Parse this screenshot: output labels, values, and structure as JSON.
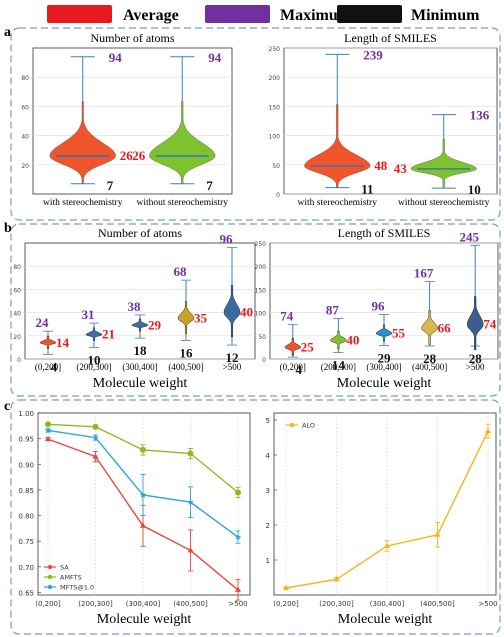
{
  "legend": {
    "items": [
      {
        "label": "Average",
        "color": "#e8191f"
      },
      {
        "label": "Maximum",
        "color": "#7030a0"
      },
      {
        "label": "Minimum",
        "color": "#000000"
      }
    ]
  },
  "panel_labels": [
    "a",
    "b",
    "c"
  ],
  "chart_data": [
    {
      "id": "a_atoms",
      "type": "violin",
      "title": "Number of atoms",
      "categories": [
        "with stereochemistry",
        "without stereochemistry"
      ],
      "ylim": [
        0,
        100
      ],
      "yticks": [
        20,
        40,
        60,
        80
      ],
      "colors": [
        "#f0542b",
        "#7ec230"
      ],
      "average": [
        26,
        26
      ],
      "maximum": [
        94,
        94
      ],
      "minimum": [
        7,
        7
      ],
      "average_labels": [
        "26",
        "26"
      ],
      "maximum_labels": [
        "94",
        "94"
      ],
      "minimum_labels": [
        "7",
        "7"
      ]
    },
    {
      "id": "a_smiles",
      "type": "violin",
      "title": "Length of SMILES",
      "categories": [
        "with stereochemistry",
        "without stereochemistry"
      ],
      "ylim": [
        0,
        250
      ],
      "yticks": [
        0,
        50,
        100,
        150,
        200,
        250
      ],
      "colors": [
        "#f0542b",
        "#7ec230"
      ],
      "average": [
        48,
        43
      ],
      "maximum": [
        239,
        136
      ],
      "minimum": [
        11,
        10
      ],
      "average_labels": [
        "48",
        "43"
      ],
      "maximum_labels": [
        "239",
        "136"
      ],
      "minimum_labels": [
        "11",
        "10"
      ]
    },
    {
      "id": "b_atoms",
      "type": "violin",
      "title": "Number of atoms",
      "xlabel": "Molecule weight",
      "categories": [
        "(0,200]",
        "(200,300]",
        "(300,400]",
        "(400,500]",
        ">500"
      ],
      "ylim": [
        0,
        100
      ],
      "yticks": [
        0,
        20,
        40,
        60,
        80
      ],
      "colors": [
        "#f0542b",
        "#3c6ea8",
        "#3e6f9e",
        "#c9a227",
        "#3a6aa4"
      ],
      "average": [
        14,
        21,
        29,
        35,
        40
      ],
      "maximum": [
        24,
        31,
        38,
        68,
        96
      ],
      "minimum": [
        4,
        10,
        18,
        16,
        12
      ],
      "average_labels": [
        "14",
        "21",
        "29",
        "35",
        "40"
      ],
      "maximum_labels": [
        "24",
        "31",
        "38",
        "68",
        "96"
      ],
      "minimum_labels": [
        "4",
        "10",
        "18",
        "16",
        "12"
      ]
    },
    {
      "id": "b_smiles",
      "type": "violin",
      "title": "Length of SMILES",
      "xlabel": "Molecule weight",
      "categories": [
        "(0,200]",
        "(200,300]",
        "(300,400]",
        "(400,500]",
        ">500"
      ],
      "ylim": [
        0,
        250
      ],
      "yticks": [
        0,
        50,
        100,
        150,
        200,
        250
      ],
      "colors": [
        "#f0542b",
        "#7ec230",
        "#2a8fcb",
        "#d8b64a",
        "#3a5f8f"
      ],
      "average": [
        25,
        40,
        55,
        66,
        74
      ],
      "maximum": [
        74,
        87,
        96,
        167,
        245
      ],
      "minimum": [
        4,
        14,
        29,
        28,
        28
      ],
      "average_labels": [
        "25",
        "40",
        "55",
        "66",
        "74"
      ],
      "maximum_labels": [
        "74",
        "87",
        "96",
        "167",
        "245"
      ],
      "minimum_labels": [
        "4",
        "14",
        "29",
        "28",
        "28"
      ]
    },
    {
      "id": "c_left",
      "type": "line",
      "xlabel": "Molecule weight",
      "categories": [
        "(0,200]",
        "(200,300]",
        "(300,400]",
        "(400,500]",
        ">500"
      ],
      "ylim": [
        0.645,
        1.0
      ],
      "ytick_labels": [
        "1.00",
        "0.95",
        "0.90",
        "0.85",
        "0.80",
        "0.75",
        "0.70",
        "0.65"
      ],
      "yticks": [
        1.0,
        0.95,
        0.9,
        0.85,
        0.8,
        0.75,
        0.7,
        0.65
      ],
      "legend_position": "lower-left",
      "series": [
        {
          "name": "SA",
          "color": "#e8493a",
          "values": [
            0.949,
            0.915,
            0.78,
            0.732,
            0.655
          ],
          "err": [
            0.003,
            0.01,
            0.04,
            0.04,
            0.02
          ]
        },
        {
          "name": "AMFTS",
          "color": "#8fba1f",
          "values": [
            0.978,
            0.973,
            0.928,
            0.921,
            0.845
          ],
          "err": [
            0.003,
            0.003,
            0.01,
            0.01,
            0.01
          ]
        },
        {
          "name": "MFTS@1.0",
          "color": "#2aa6d8",
          "values": [
            0.966,
            0.952,
            0.84,
            0.826,
            0.758
          ],
          "err": [
            0.003,
            0.005,
            0.04,
            0.03,
            0.012
          ]
        }
      ]
    },
    {
      "id": "c_right",
      "type": "line",
      "xlabel": "Molecule weight",
      "categories": [
        "(0,200]",
        "(200,300]",
        "(300,400]",
        "(400,500]",
        ">500"
      ],
      "ylim": [
        0,
        5.2
      ],
      "yticks": [
        1,
        2,
        3,
        4,
        5
      ],
      "ytick_labels": [
        "1",
        "2",
        "3",
        "4",
        "5"
      ],
      "legend_position": "top-left",
      "series": [
        {
          "name": "ALO",
          "color": "#f2b61a",
          "values": [
            0.2,
            0.45,
            1.4,
            1.72,
            4.68
          ],
          "err": [
            0.02,
            0.05,
            0.15,
            0.35,
            0.2
          ]
        }
      ]
    }
  ]
}
